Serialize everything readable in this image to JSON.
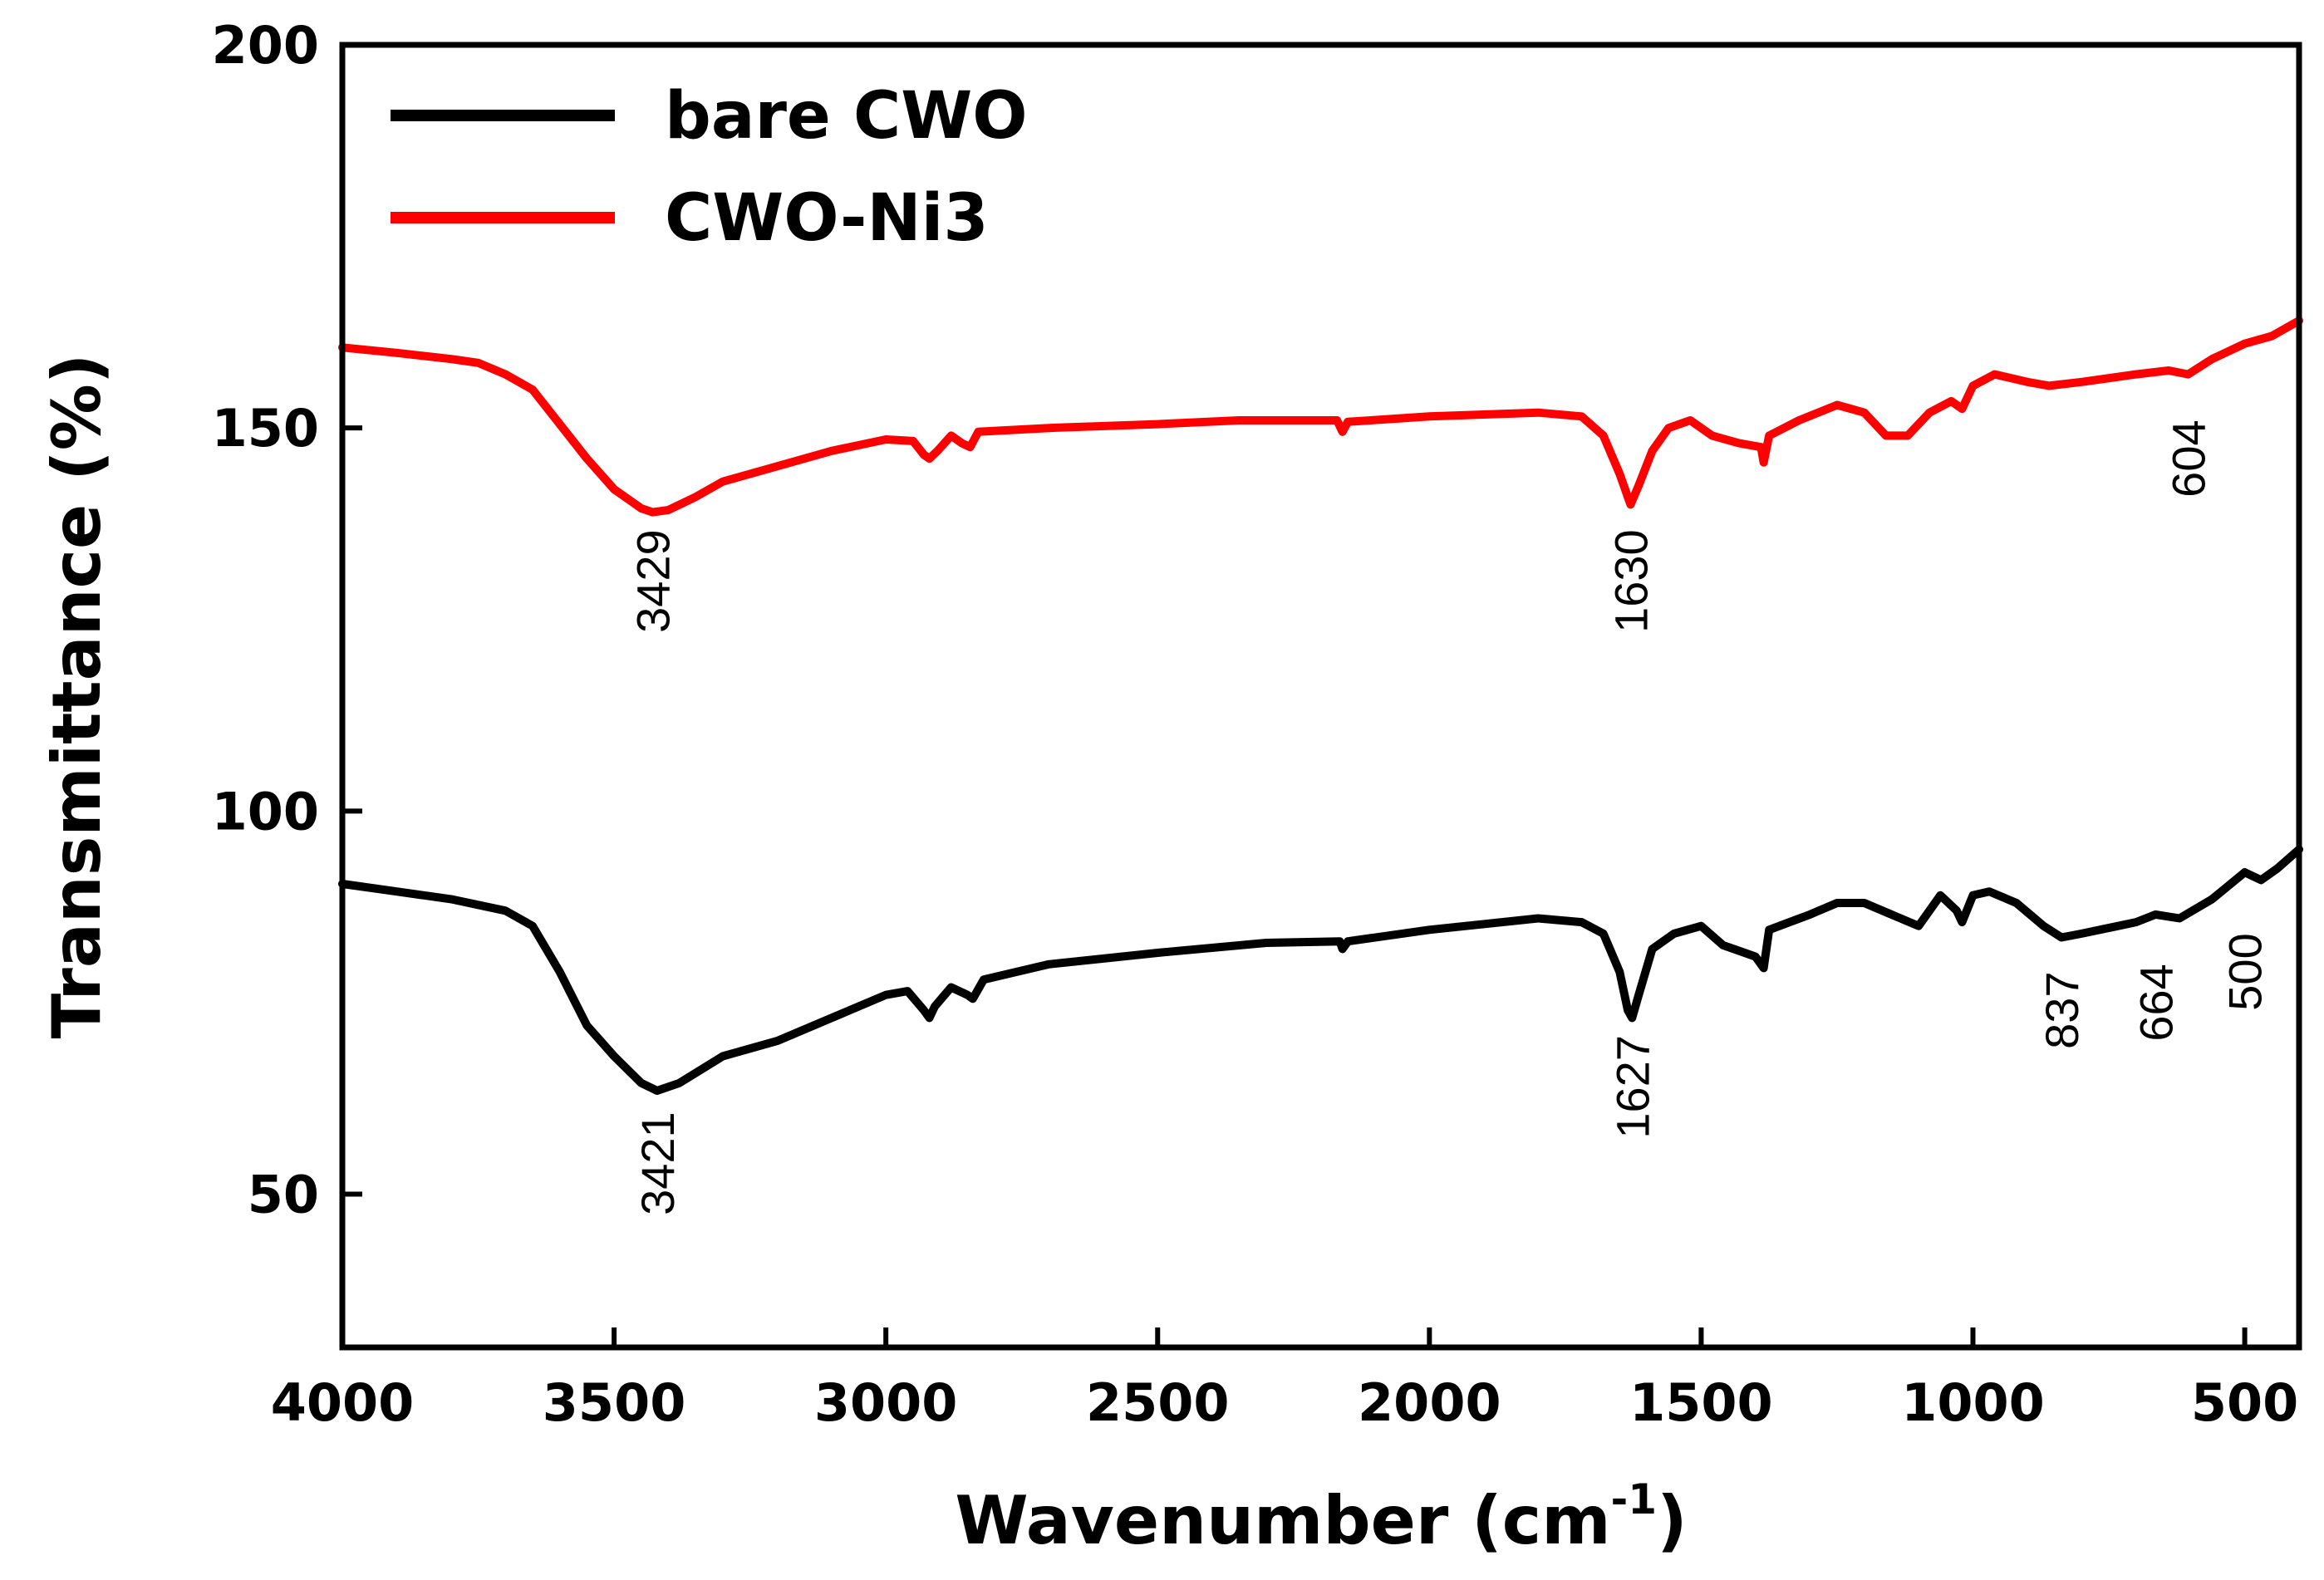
{
  "chart_data": {
    "type": "line",
    "title": "",
    "xlabel": "Wavenumber (cm",
    "xlabel_sup": "-1",
    "xlabel_close": ")",
    "ylabel": "Transmittance (%)",
    "xlim": [
      4000,
      400
    ],
    "ylim": [
      30,
      200
    ],
    "x_ticks": [
      4000,
      3500,
      3000,
      2500,
      2000,
      1500,
      1000,
      500
    ],
    "x_tick_labels": [
      "4000",
      "3500",
      "3000",
      "2500",
      "2000",
      "1500",
      "1000",
      "500"
    ],
    "y_ticks": [
      50,
      100,
      150,
      200
    ],
    "y_tick_labels": [
      "50",
      "100",
      "150",
      "200"
    ],
    "legend_position": "top-left",
    "series": [
      {
        "name": "bare CWO",
        "color": "#000000",
        "points": [
          [
            4000,
            90.5
          ],
          [
            3900,
            89.5
          ],
          [
            3800,
            88.5
          ],
          [
            3700,
            87
          ],
          [
            3650,
            85
          ],
          [
            3600,
            79
          ],
          [
            3550,
            72
          ],
          [
            3500,
            68
          ],
          [
            3450,
            64.5
          ],
          [
            3421,
            63.5
          ],
          [
            3380,
            64.5
          ],
          [
            3300,
            68
          ],
          [
            3200,
            70
          ],
          [
            3100,
            73
          ],
          [
            3000,
            76
          ],
          [
            2960,
            76.5
          ],
          [
            2930,
            74
          ],
          [
            2920,
            73
          ],
          [
            2910,
            74.5
          ],
          [
            2880,
            77
          ],
          [
            2850,
            76
          ],
          [
            2840,
            75.5
          ],
          [
            2820,
            78
          ],
          [
            2700,
            80
          ],
          [
            2500,
            81.5
          ],
          [
            2300,
            82.8
          ],
          [
            2165,
            83
          ],
          [
            2160,
            82
          ],
          [
            2150,
            83
          ],
          [
            2000,
            84.5
          ],
          [
            1800,
            86
          ],
          [
            1720,
            85.5
          ],
          [
            1680,
            84
          ],
          [
            1650,
            79
          ],
          [
            1635,
            74
          ],
          [
            1627,
            73
          ],
          [
            1615,
            76
          ],
          [
            1590,
            82
          ],
          [
            1550,
            84
          ],
          [
            1500,
            85
          ],
          [
            1460,
            82.5
          ],
          [
            1420,
            81.5
          ],
          [
            1400,
            81
          ],
          [
            1385,
            79.5
          ],
          [
            1375,
            84.5
          ],
          [
            1300,
            86.5
          ],
          [
            1250,
            88
          ],
          [
            1200,
            88
          ],
          [
            1150,
            86.5
          ],
          [
            1100,
            85
          ],
          [
            1060,
            89
          ],
          [
            1030,
            87
          ],
          [
            1020,
            85.5
          ],
          [
            1000,
            89
          ],
          [
            970,
            89.5
          ],
          [
            920,
            88
          ],
          [
            870,
            85
          ],
          [
            837,
            83.5
          ],
          [
            800,
            84
          ],
          [
            700,
            85.5
          ],
          [
            664,
            86.5
          ],
          [
            620,
            86
          ],
          [
            560,
            88.5
          ],
          [
            500,
            92
          ],
          [
            470,
            91
          ],
          [
            440,
            92.5
          ],
          [
            400,
            95
          ]
        ]
      },
      {
        "name": "CWO-Ni3",
        "color": "#ff0000",
        "points": [
          [
            4000,
            160.5
          ],
          [
            3900,
            159.8
          ],
          [
            3800,
            159
          ],
          [
            3750,
            158.5
          ],
          [
            3700,
            157
          ],
          [
            3650,
            155
          ],
          [
            3600,
            150.5
          ],
          [
            3550,
            146
          ],
          [
            3500,
            142
          ],
          [
            3450,
            139.5
          ],
          [
            3429,
            139
          ],
          [
            3400,
            139.3
          ],
          [
            3350,
            141
          ],
          [
            3300,
            143
          ],
          [
            3200,
            145
          ],
          [
            3100,
            147
          ],
          [
            3000,
            148.5
          ],
          [
            2950,
            148.3
          ],
          [
            2930,
            146.5
          ],
          [
            2920,
            146
          ],
          [
            2905,
            147
          ],
          [
            2880,
            149
          ],
          [
            2860,
            148
          ],
          [
            2845,
            147.5
          ],
          [
            2830,
            149.5
          ],
          [
            2700,
            150
          ],
          [
            2500,
            150.5
          ],
          [
            2350,
            151
          ],
          [
            2170,
            151
          ],
          [
            2160,
            149.5
          ],
          [
            2150,
            150.8
          ],
          [
            2000,
            151.5
          ],
          [
            1800,
            152
          ],
          [
            1720,
            151.5
          ],
          [
            1680,
            149
          ],
          [
            1650,
            144
          ],
          [
            1635,
            141
          ],
          [
            1630,
            140
          ],
          [
            1615,
            142.5
          ],
          [
            1590,
            147
          ],
          [
            1560,
            150
          ],
          [
            1520,
            151
          ],
          [
            1480,
            149
          ],
          [
            1430,
            148
          ],
          [
            1390,
            147.5
          ],
          [
            1385,
            145.5
          ],
          [
            1375,
            149
          ],
          [
            1320,
            151
          ],
          [
            1250,
            153
          ],
          [
            1200,
            152
          ],
          [
            1160,
            149
          ],
          [
            1120,
            149
          ],
          [
            1080,
            152
          ],
          [
            1040,
            153.5
          ],
          [
            1020,
            152.5
          ],
          [
            1000,
            155.5
          ],
          [
            960,
            157
          ],
          [
            900,
            156
          ],
          [
            860,
            155.5
          ],
          [
            800,
            156
          ],
          [
            700,
            157
          ],
          [
            640,
            157.5
          ],
          [
            604,
            157
          ],
          [
            560,
            159
          ],
          [
            500,
            161
          ],
          [
            450,
            162
          ],
          [
            400,
            164
          ]
        ]
      }
    ],
    "annotations": [
      {
        "text": "3429",
        "x": 3429,
        "y": 130
      },
      {
        "text": "1630",
        "x": 1630,
        "y": 130
      },
      {
        "text": "604",
        "x": 604,
        "y": 146
      },
      {
        "text": "3421",
        "x": 3421,
        "y": 54
      },
      {
        "text": "1627",
        "x": 1627,
        "y": 64
      },
      {
        "text": "837",
        "x": 837,
        "y": 74
      },
      {
        "text": "664",
        "x": 664,
        "y": 75
      },
      {
        "text": "500",
        "x": 500,
        "y": 79
      }
    ]
  }
}
